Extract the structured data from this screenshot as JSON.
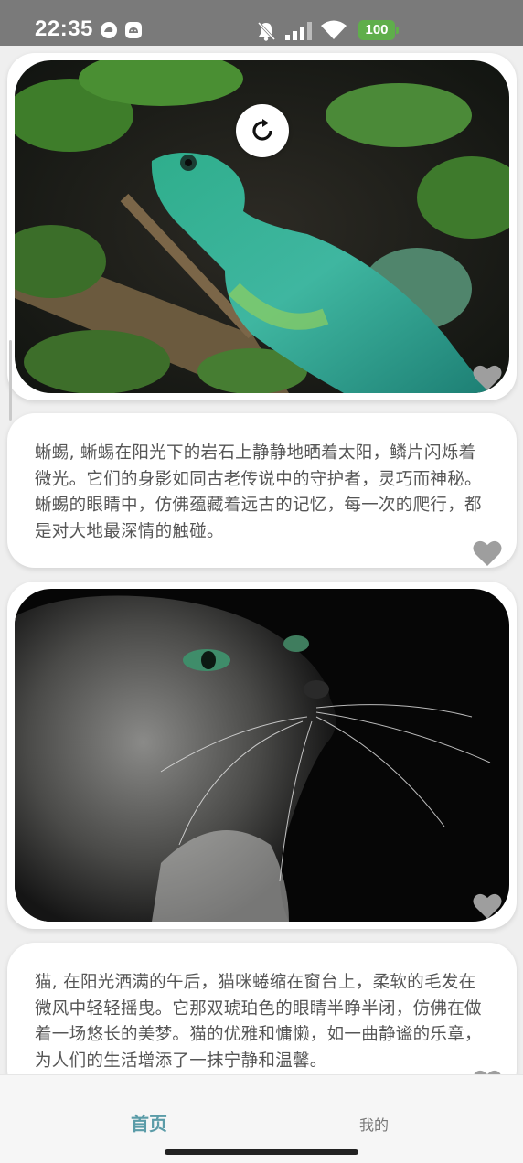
{
  "status_bar": {
    "time": "22:35",
    "battery": "100",
    "icons": [
      "app-notification-icon",
      "android-icon",
      "bell-off-icon",
      "signal-icon",
      "wifi-icon",
      "battery-icon"
    ]
  },
  "feed": {
    "items": [
      {
        "type": "image",
        "subject": "lizard",
        "icons": [
          "refresh-icon",
          "heart-icon"
        ]
      },
      {
        "type": "text",
        "text": "蜥蜴, 蜥蜴在阳光下的岩石上静静地晒着太阳，鳞片闪烁着微光。它们的身影如同古老传说中的守护者，灵巧而神秘。蜥蜴的眼睛中，仿佛蕴藏着远古的记忆，每一次的爬行，都是对大地最深情的触碰。",
        "icons": [
          "heart-icon"
        ]
      },
      {
        "type": "image",
        "subject": "cat",
        "icons": [
          "heart-icon"
        ]
      },
      {
        "type": "text",
        "text": "猫, 在阳光洒满的午后，猫咪蜷缩在窗台上，柔软的毛发在微风中轻轻摇曳。它那双琥珀色的眼睛半睁半闭，仿佛在做着一场悠长的美梦。猫的优雅和慵懒，如一曲静谧的乐章，为人们的生活增添了一抹宁静和温馨。",
        "icons": [
          "heart-icon"
        ]
      }
    ]
  },
  "bottom_nav": {
    "home": "首页",
    "mine": "我的",
    "active": "home"
  },
  "colors": {
    "accent": "#5b9ca8",
    "status_bar": "#7a7a7a",
    "battery": "#5fae4b",
    "heart": "#9e9e9e"
  }
}
